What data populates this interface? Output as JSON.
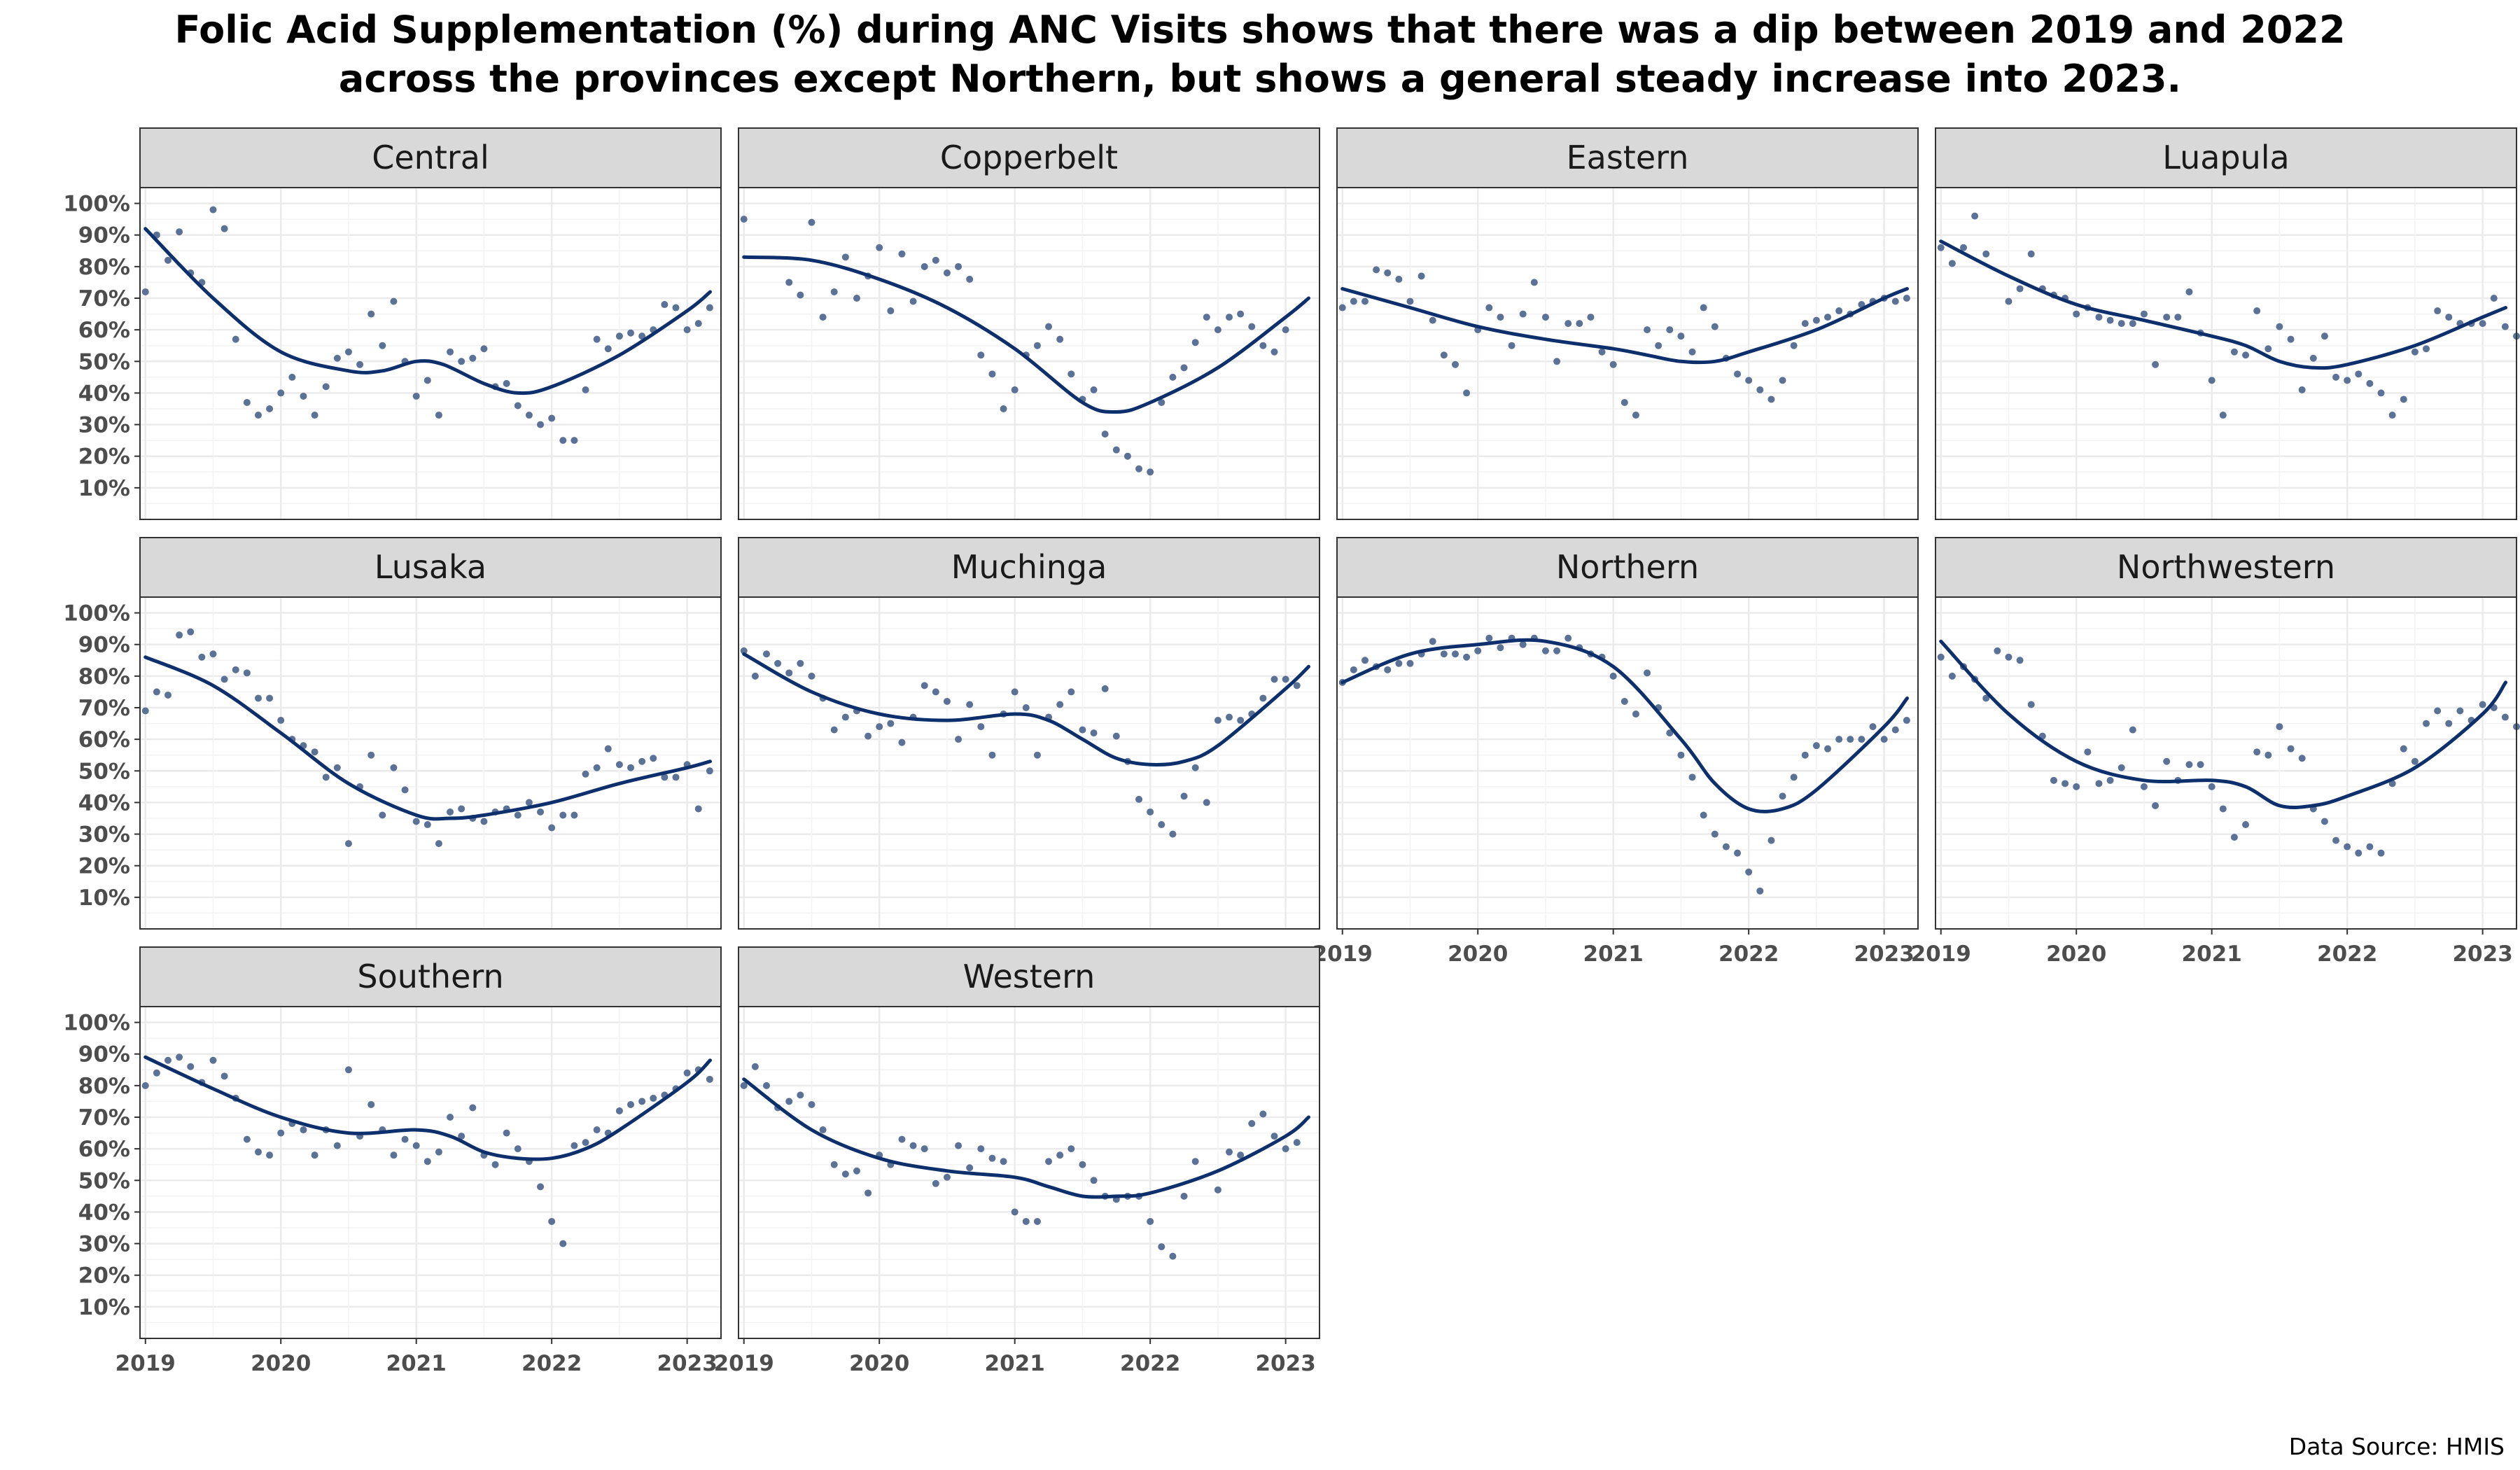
{
  "title": {
    "line1": "Folic Acid Supplementation (%) during ANC Visits shows that there was a dip between 2019 and 2022",
    "line2": "across the provinces except Northern, but shows a general steady increase into 2023."
  },
  "source": "Data Source: HMIS",
  "colors": {
    "line": "#0d2f6b",
    "point": "#5b7196",
    "strip": "#d9d9d9",
    "grid": "#ebebeb",
    "panel_border": "#333333"
  },
  "chart_data": {
    "type": "scatter",
    "facet": "small-multiples",
    "x_ticks": [
      2019,
      2020,
      2021,
      2022,
      2023
    ],
    "xlim": [
      2018.96,
      2023.25
    ],
    "y_ticks": [
      "10%",
      "20%",
      "30%",
      "40%",
      "50%",
      "60%",
      "70%",
      "80%",
      "90%",
      "100%"
    ],
    "y_tick_values": [
      10,
      20,
      30,
      40,
      50,
      60,
      70,
      80,
      90,
      100
    ],
    "ylim": [
      0,
      105
    ],
    "trend": "loess smoothed line",
    "panels": [
      {
        "name": "Central",
        "points": [
          72,
          90,
          82,
          91,
          78,
          75,
          98,
          92,
          57,
          37,
          33,
          35,
          40,
          45,
          39,
          33,
          42,
          51,
          53,
          49,
          65,
          55,
          69,
          50,
          39,
          44,
          33,
          53,
          50,
          51,
          54,
          42,
          43,
          36,
          33,
          30,
          32,
          25,
          25,
          41,
          57,
          54,
          58,
          59,
          58,
          60,
          68,
          67,
          60,
          62,
          67
        ],
        "trend": [
          [
            2019,
            92
          ],
          [
            2019.5,
            70
          ],
          [
            2020,
            53
          ],
          [
            2020.5,
            47
          ],
          [
            2020.75,
            47
          ],
          [
            2021,
            50
          ],
          [
            2021.2,
            49
          ],
          [
            2021.5,
            43
          ],
          [
            2021.75,
            40
          ],
          [
            2022,
            42
          ],
          [
            2022.5,
            52
          ],
          [
            2023,
            66
          ],
          [
            2023.17,
            72
          ]
        ]
      },
      {
        "name": "Copperbelt",
        "points": [
          95,
          null,
          null,
          null,
          75,
          71,
          94,
          64,
          72,
          83,
          70,
          77,
          86,
          66,
          84,
          69,
          80,
          82,
          78,
          80,
          76,
          52,
          46,
          35,
          41,
          52,
          55,
          61,
          57,
          46,
          38,
          41,
          27,
          22,
          20,
          16,
          15,
          37,
          45,
          48,
          56,
          64,
          60,
          64,
          65,
          61,
          55,
          53,
          60
        ],
        "trend": [
          [
            2019,
            83
          ],
          [
            2019.5,
            82
          ],
          [
            2020,
            76
          ],
          [
            2020.5,
            67
          ],
          [
            2021,
            54
          ],
          [
            2021.5,
            37
          ],
          [
            2021.75,
            34
          ],
          [
            2022,
            37
          ],
          [
            2022.5,
            48
          ],
          [
            2023,
            64
          ],
          [
            2023.17,
            70
          ]
        ]
      },
      {
        "name": "Eastern",
        "points": [
          67,
          69,
          69,
          79,
          78,
          76,
          69,
          77,
          63,
          52,
          49,
          40,
          60,
          67,
          64,
          55,
          65,
          75,
          64,
          50,
          62,
          62,
          64,
          53,
          49,
          37,
          33,
          60,
          55,
          60,
          58,
          53,
          67,
          61,
          51,
          46,
          44,
          41,
          38,
          44,
          55,
          62,
          63,
          64,
          66,
          65,
          68,
          69,
          70,
          69,
          70
        ],
        "trend": [
          [
            2019,
            73
          ],
          [
            2019.5,
            67
          ],
          [
            2020,
            61
          ],
          [
            2020.5,
            57
          ],
          [
            2021,
            54
          ],
          [
            2021.25,
            52
          ],
          [
            2021.5,
            50
          ],
          [
            2021.75,
            50
          ],
          [
            2022,
            53
          ],
          [
            2022.5,
            60
          ],
          [
            2023,
            70
          ],
          [
            2023.17,
            73
          ]
        ]
      },
      {
        "name": "Luapula",
        "points": [
          86,
          81,
          86,
          96,
          84,
          null,
          69,
          73,
          84,
          73,
          71,
          70,
          65,
          67,
          64,
          63,
          62,
          62,
          65,
          49,
          64,
          64,
          72,
          59,
          44,
          33,
          53,
          52,
          66,
          54,
          61,
          57,
          41,
          51,
          58,
          45,
          44,
          46,
          43,
          40,
          33,
          38,
          53,
          54,
          66,
          64,
          62,
          62,
          62,
          70,
          61,
          58,
          62
        ],
        "trend": [
          [
            2019,
            88
          ],
          [
            2019.5,
            77
          ],
          [
            2020,
            68
          ],
          [
            2020.5,
            63
          ],
          [
            2021,
            58
          ],
          [
            2021.25,
            55
          ],
          [
            2021.5,
            50
          ],
          [
            2021.75,
            48
          ],
          [
            2022,
            49
          ],
          [
            2022.5,
            55
          ],
          [
            2023,
            64
          ],
          [
            2023.17,
            67
          ]
        ]
      },
      {
        "name": "Lusaka",
        "points": [
          69,
          75,
          74,
          93,
          94,
          86,
          87,
          79,
          82,
          81,
          73,
          73,
          66,
          60,
          58,
          56,
          48,
          51,
          27,
          45,
          55,
          36,
          51,
          44,
          34,
          33,
          27,
          37,
          38,
          35,
          34,
          37,
          38,
          36,
          40,
          37,
          32,
          36,
          36,
          49,
          51,
          57,
          52,
          51,
          53,
          54,
          48,
          48,
          52,
          38,
          50
        ],
        "trend": [
          [
            2019,
            86
          ],
          [
            2019.5,
            77
          ],
          [
            2020,
            62
          ],
          [
            2020.5,
            46
          ],
          [
            2021,
            36
          ],
          [
            2021.25,
            35
          ],
          [
            2021.5,
            36
          ],
          [
            2022,
            40
          ],
          [
            2022.5,
            46
          ],
          [
            2023,
            51
          ],
          [
            2023.17,
            53
          ]
        ]
      },
      {
        "name": "Muchinga",
        "points": [
          88,
          80,
          87,
          84,
          81,
          84,
          80,
          73,
          63,
          67,
          69,
          61,
          64,
          65,
          59,
          67,
          77,
          75,
          72,
          60,
          71,
          64,
          55,
          68,
          75,
          70,
          55,
          67,
          71,
          75,
          63,
          62,
          76,
          61,
          53,
          41,
          37,
          33,
          30,
          42,
          51,
          40,
          66,
          67,
          66,
          68,
          73,
          79,
          79,
          77
        ],
        "trend": [
          [
            2019,
            87
          ],
          [
            2019.5,
            75
          ],
          [
            2020,
            68
          ],
          [
            2020.5,
            66
          ],
          [
            2021,
            68
          ],
          [
            2021.25,
            66
          ],
          [
            2021.5,
            60
          ],
          [
            2021.75,
            54
          ],
          [
            2022,
            52
          ],
          [
            2022.25,
            53
          ],
          [
            2022.5,
            58
          ],
          [
            2023,
            76
          ],
          [
            2023.17,
            83
          ]
        ]
      },
      {
        "name": "Northern",
        "points": [
          78,
          82,
          85,
          83,
          82,
          84,
          84,
          87,
          91,
          87,
          87,
          86,
          88,
          92,
          89,
          92,
          90,
          92,
          88,
          88,
          92,
          89,
          87,
          86,
          80,
          72,
          68,
          81,
          70,
          62,
          55,
          48,
          36,
          30,
          26,
          24,
          18,
          12,
          28,
          42,
          48,
          55,
          58,
          57,
          60,
          60,
          60,
          64,
          60,
          63,
          66
        ],
        "trend": [
          [
            2019,
            78
          ],
          [
            2019.5,
            87
          ],
          [
            2020,
            90
          ],
          [
            2020.5,
            91
          ],
          [
            2021,
            83
          ],
          [
            2021.5,
            60
          ],
          [
            2021.75,
            46
          ],
          [
            2022,
            38
          ],
          [
            2022.25,
            38
          ],
          [
            2022.5,
            44
          ],
          [
            2023,
            64
          ],
          [
            2023.17,
            73
          ]
        ]
      },
      {
        "name": "Northwestern",
        "points": [
          86,
          80,
          83,
          79,
          73,
          88,
          86,
          85,
          71,
          61,
          47,
          46,
          45,
          56,
          46,
          47,
          51,
          63,
          45,
          39,
          53,
          47,
          52,
          52,
          45,
          38,
          29,
          33,
          56,
          55,
          64,
          57,
          54,
          38,
          34,
          28,
          26,
          24,
          26,
          24,
          46,
          57,
          53,
          65,
          69,
          65,
          69,
          66,
          71,
          70,
          67,
          64
        ],
        "trend": [
          [
            2019,
            91
          ],
          [
            2019.5,
            68
          ],
          [
            2020,
            53
          ],
          [
            2020.5,
            47
          ],
          [
            2021,
            47
          ],
          [
            2021.25,
            45
          ],
          [
            2021.5,
            39
          ],
          [
            2021.75,
            39
          ],
          [
            2022,
            42
          ],
          [
            2022.5,
            51
          ],
          [
            2023,
            68
          ],
          [
            2023.17,
            78
          ]
        ]
      },
      {
        "name": "Southern",
        "points": [
          80,
          84,
          88,
          89,
          86,
          81,
          88,
          83,
          76,
          63,
          59,
          58,
          65,
          68,
          66,
          58,
          66,
          61,
          85,
          64,
          74,
          66,
          58,
          63,
          61,
          56,
          59,
          70,
          64,
          73,
          58,
          55,
          65,
          60,
          56,
          48,
          37,
          30,
          61,
          62,
          66,
          65,
          72,
          74,
          75,
          76,
          77,
          79,
          84,
          85,
          82
        ],
        "trend": [
          [
            2019,
            89
          ],
          [
            2019.5,
            79
          ],
          [
            2020,
            70
          ],
          [
            2020.5,
            65
          ],
          [
            2021,
            66
          ],
          [
            2021.25,
            64
          ],
          [
            2021.5,
            59
          ],
          [
            2021.75,
            57
          ],
          [
            2022,
            57
          ],
          [
            2022.25,
            60
          ],
          [
            2022.5,
            66
          ],
          [
            2023,
            81
          ],
          [
            2023.17,
            88
          ]
        ]
      },
      {
        "name": "Western",
        "points": [
          80,
          86,
          80,
          73,
          75,
          77,
          74,
          66,
          55,
          52,
          53,
          46,
          58,
          55,
          63,
          61,
          60,
          49,
          51,
          61,
          54,
          60,
          57,
          56,
          40,
          37,
          37,
          56,
          58,
          60,
          55,
          50,
          45,
          44,
          45,
          45,
          37,
          29,
          26,
          45,
          56,
          null,
          47,
          59,
          58,
          68,
          71,
          64,
          60,
          62
        ],
        "trend": [
          [
            2019,
            82
          ],
          [
            2019.5,
            66
          ],
          [
            2020,
            57
          ],
          [
            2020.5,
            53
          ],
          [
            2021,
            51
          ],
          [
            2021.25,
            48
          ],
          [
            2021.5,
            45
          ],
          [
            2021.75,
            45
          ],
          [
            2022,
            46
          ],
          [
            2022.5,
            53
          ],
          [
            2023,
            64
          ],
          [
            2023.17,
            70
          ]
        ]
      }
    ]
  }
}
